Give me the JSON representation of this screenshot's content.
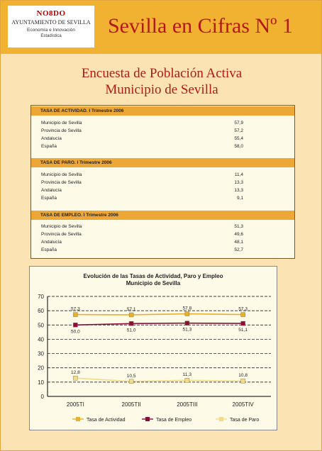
{
  "header": {
    "logo": {
      "nodo": "NO8DO",
      "org": "AYUNTAMIENTO DE SEVILLA",
      "dept": "Economía e Innovación",
      "unit": "Estadística"
    },
    "title": "Sevilla en Cifras Nº 1"
  },
  "headline": {
    "line1": "Encuesta de Población Activa",
    "line2": "Municipio de Sevilla"
  },
  "sections": [
    {
      "title": "TASA DE ACTIVIDAD. I Trimestre 2006",
      "rows": [
        {
          "label": "Municipio de Sevilla",
          "value": "57,9"
        },
        {
          "label": "Provincia de Sevilla",
          "value": "57,2"
        },
        {
          "label": "Andalucía",
          "value": "55,4"
        },
        {
          "label": "España",
          "value": "58,0"
        }
      ]
    },
    {
      "title": "TASA DE PARO. I Trimestre 2006",
      "rows": [
        {
          "label": "Municipio de Sevilla",
          "value": "11,4"
        },
        {
          "label": "Provincia de Sevilla",
          "value": "13,3"
        },
        {
          "label": "Andalucía",
          "value": "13,3"
        },
        {
          "label": "España",
          "value": "9,1"
        }
      ]
    },
    {
      "title": "TASA DE EMPLEO. I Trimestre 2006",
      "rows": [
        {
          "label": "Municipio de Sevilla",
          "value": "51,3"
        },
        {
          "label": "Provincia de Sevilla",
          "value": "49,6"
        },
        {
          "label": "Andalucía",
          "value": "48,1"
        },
        {
          "label": "España",
          "value": "52,7"
        }
      ]
    }
  ],
  "chart_data": {
    "type": "line",
    "title": "Evolución de las Tasas de Actividad, Paro y Empleo",
    "subtitle": "Municipio de Sevilla",
    "categories": [
      "2005TI",
      "2005TII",
      "2005TIII",
      "2005TIV"
    ],
    "ylim": [
      0,
      70
    ],
    "yticks": [
      0,
      10,
      20,
      30,
      40,
      50,
      60,
      70
    ],
    "grid": true,
    "legend": "bottom",
    "series": [
      {
        "name": "Tasa de Actividad",
        "values": [
          57.3,
          57.1,
          57.8,
          57.3
        ],
        "labels": [
          "57,3",
          "57,1",
          "57,8",
          "57,3"
        ],
        "color": "#e9b02e",
        "label_pos": "above"
      },
      {
        "name": "Tasa de Empleo",
        "values": [
          50.0,
          51.0,
          51.3,
          51.1
        ],
        "labels": [
          "50,0",
          "51,0",
          "51,3",
          "51,1"
        ],
        "color": "#8b0f3a",
        "label_pos": "below"
      },
      {
        "name": "Tasa de Paro",
        "values": [
          12.8,
          10.5,
          11.3,
          10.8
        ],
        "labels": [
          "12,8",
          "10,5",
          "11,3",
          "10,8"
        ],
        "color": "#f2dc8a",
        "label_pos": "above"
      }
    ]
  }
}
